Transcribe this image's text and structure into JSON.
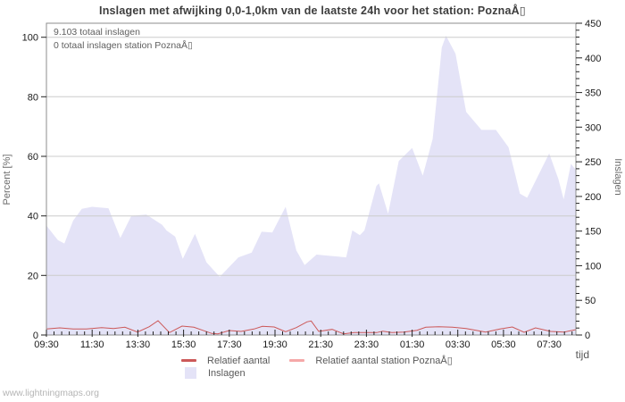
{
  "title": "Inslagen met afwijking 0,0-1,0km van de laatste 24h voor het station: PoznaÅ▯",
  "annotations": {
    "total": "9.103 totaal inslagen",
    "station_total": "0 totaal inslagen station PoznaÅ▯"
  },
  "legend": {
    "relative_label": "Relatief aantal",
    "relative_station_label": "Relatief aantal station PoznaÅ▯",
    "inslagen_label": "Inslagen"
  },
  "watermark": "www.lightningmaps.org",
  "colors": {
    "area_fill": "#e4e3f7",
    "relative_line": "#cc5858",
    "relative_station_line": "#f5a8a8",
    "gridline": "#cccccc",
    "frame": "#8c8c8c",
    "tick_text": "#1a1a1a"
  },
  "chart_data": {
    "type": "area",
    "title": "Inslagen met afwijking 0,0-1,0km van de laatste 24h voor het station: PoznaÅ▯",
    "xlabel": "tijd",
    "ylabel_left": "Percent [%]",
    "ylabel_right": "Inslagen",
    "x_unit": "minutes after 09:30",
    "x_max": 1390,
    "x_minor_step": 20,
    "x_tick_minutes": [
      0,
      120,
      240,
      360,
      480,
      600,
      720,
      840,
      960,
      1080,
      1200,
      1320
    ],
    "x_tick_labels": [
      "09:30",
      "11:30",
      "13:30",
      "15:30",
      "17:30",
      "19:30",
      "21:30",
      "23:30",
      "01:30",
      "03:30",
      "05:30",
      "07:30"
    ],
    "ylim_left": [
      0,
      100
    ],
    "yticks_left": [
      0,
      20,
      40,
      60,
      80,
      100
    ],
    "gridlines_left": [
      20,
      40,
      60,
      80,
      100
    ],
    "ylim_right": [
      0,
      450
    ],
    "yticks_right": [
      0,
      50,
      100,
      150,
      200,
      250,
      300,
      350,
      400,
      450
    ],
    "y_minor_step_right": 10,
    "legend_position": "bottom",
    "series": [
      {
        "name": "Inslagen",
        "type": "area",
        "axis": "right",
        "color": "#e4e3f7",
        "points": [
          [
            0,
            158
          ],
          [
            30,
            137
          ],
          [
            47,
            132
          ],
          [
            70,
            165
          ],
          [
            93,
            182
          ],
          [
            120,
            185
          ],
          [
            163,
            183
          ],
          [
            194,
            140
          ],
          [
            223,
            172
          ],
          [
            262,
            174
          ],
          [
            304,
            159
          ],
          [
            315,
            151
          ],
          [
            338,
            142
          ],
          [
            358,
            110
          ],
          [
            390,
            146
          ],
          [
            420,
            105
          ],
          [
            455,
            84
          ],
          [
            504,
            112
          ],
          [
            539,
            119
          ],
          [
            565,
            149
          ],
          [
            593,
            148
          ],
          [
            628,
            185
          ],
          [
            656,
            122
          ],
          [
            678,
            101
          ],
          [
            709,
            116
          ],
          [
            750,
            114
          ],
          [
            787,
            112
          ],
          [
            803,
            151
          ],
          [
            823,
            144
          ],
          [
            835,
            151
          ],
          [
            866,
            215
          ],
          [
            873,
            219
          ],
          [
            897,
            175
          ],
          [
            925,
            251
          ],
          [
            960,
            270
          ],
          [
            988,
            230
          ],
          [
            1014,
            283
          ],
          [
            1038,
            415
          ],
          [
            1049,
            432
          ],
          [
            1074,
            406
          ],
          [
            1102,
            322
          ],
          [
            1142,
            296
          ],
          [
            1180,
            296
          ],
          [
            1213,
            271
          ],
          [
            1243,
            204
          ],
          [
            1262,
            198
          ],
          [
            1320,
            262
          ],
          [
            1344,
            225
          ],
          [
            1358,
            196
          ],
          [
            1377,
            247
          ],
          [
            1390,
            238
          ]
        ]
      },
      {
        "name": "Relatief aantal",
        "type": "line",
        "axis": "left",
        "color": "#cc5858",
        "points": [
          [
            0,
            2.0
          ],
          [
            35,
            2.4
          ],
          [
            70,
            2.0
          ],
          [
            105,
            2.0
          ],
          [
            145,
            2.5
          ],
          [
            176,
            2.2
          ],
          [
            206,
            2.6
          ],
          [
            239,
            1.0
          ],
          [
            270,
            2.8
          ],
          [
            293,
            4.8
          ],
          [
            323,
            0.8
          ],
          [
            356,
            3.0
          ],
          [
            387,
            2.6
          ],
          [
            410,
            1.6
          ],
          [
            434,
            0.5
          ],
          [
            450,
            0.4
          ],
          [
            480,
            1.5
          ],
          [
            511,
            1.2
          ],
          [
            545,
            2.0
          ],
          [
            567,
            2.9
          ],
          [
            598,
            2.7
          ],
          [
            628,
            1.1
          ],
          [
            656,
            2.5
          ],
          [
            684,
            4.4
          ],
          [
            695,
            4.7
          ],
          [
            715,
            1.2
          ],
          [
            750,
            1.9
          ],
          [
            780,
            0.4
          ],
          [
            808,
            0.8
          ],
          [
            840,
            0.8
          ],
          [
            867,
            0.8
          ],
          [
            883,
            1.3
          ],
          [
            907,
            0.8
          ],
          [
            938,
            1.0
          ],
          [
            973,
            1.6
          ],
          [
            996,
            2.6
          ],
          [
            1030,
            2.8
          ],
          [
            1066,
            2.6
          ],
          [
            1102,
            2.2
          ],
          [
            1153,
            1.0
          ],
          [
            1191,
            2.0
          ],
          [
            1223,
            2.7
          ],
          [
            1254,
            0.9
          ],
          [
            1284,
            2.4
          ],
          [
            1324,
            1.2
          ],
          [
            1359,
            1.0
          ],
          [
            1390,
            1.8
          ]
        ]
      },
      {
        "name": "Relatief aantal station PoznaÅ▯",
        "type": "line",
        "axis": "left",
        "color": "#f5a8a8",
        "points": [
          [
            0,
            0
          ],
          [
            1390,
            0
          ]
        ]
      }
    ]
  }
}
